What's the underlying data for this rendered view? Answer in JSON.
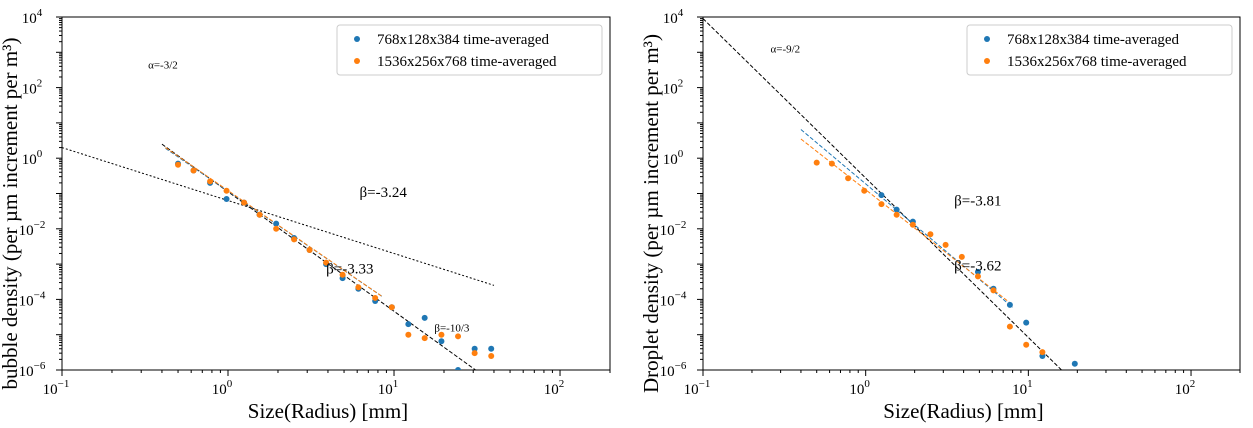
{
  "chart_data": [
    {
      "type": "scatter",
      "xscale": "log",
      "yscale": "log",
      "xlim": [
        0.1,
        200
      ],
      "ylim": [
        1e-06,
        10000.0
      ],
      "xlabel": "Size(Radius) [mm]",
      "ylabel": "bubble density (per µm increment per m³)",
      "xticks": [
        {
          "base": "10",
          "exp": "−1"
        },
        {
          "base": "10",
          "exp": "0"
        },
        {
          "base": "10",
          "exp": "1"
        },
        {
          "base": "10",
          "exp": "2"
        }
      ],
      "yticks": [
        {
          "base": "10",
          "exp": "−6"
        },
        {
          "base": "10",
          "exp": "−4"
        },
        {
          "base": "10",
          "exp": "−2"
        },
        {
          "base": "10",
          "exp": "0"
        },
        {
          "base": "10",
          "exp": "2"
        },
        {
          "base": "10",
          "exp": "4"
        }
      ],
      "legend_position": "top-right",
      "series": [
        {
          "name": "768x128x384  time-averaged",
          "color": "#1f77b4",
          "x": [
            0.5,
            0.62,
            0.78,
            0.98,
            1.25,
            1.55,
            1.95,
            2.5,
            3.1,
            3.9,
            4.9,
            6.1,
            7.7,
            9.7,
            12.2,
            15.3,
            19.3,
            24.3,
            30.6,
            38.5
          ],
          "y": [
            0.7,
            0.45,
            0.2,
            0.07,
            0.055,
            0.025,
            0.014,
            0.0055,
            0.0025,
            0.001,
            0.0004,
            0.0002,
            9e-05,
            6e-05,
            2e-05,
            3e-05,
            6.5e-06,
            1e-06,
            4e-06,
            4e-06
          ]
        },
        {
          "name": "1536x256x768  time-averaged",
          "color": "#ff7f0e",
          "x": [
            0.5,
            0.62,
            0.78,
            0.98,
            1.25,
            1.55,
            1.95,
            2.5,
            3.1,
            3.9,
            4.9,
            6.1,
            7.7,
            9.7,
            12.2,
            15.3,
            19.3,
            24.3,
            30.6,
            38.5
          ],
          "y": [
            0.65,
            0.45,
            0.22,
            0.12,
            0.055,
            0.025,
            0.01,
            0.005,
            0.0025,
            0.0011,
            0.0005,
            0.00022,
            0.00011,
            6e-05,
            1e-05,
            8e-06,
            1e-05,
            9e-06,
            3e-06,
            2.5e-06
          ]
        }
      ],
      "fit_lines": [
        {
          "style": "dotted",
          "color": "#000000",
          "x": [
            0.1,
            40
          ],
          "y": [
            2.0,
            0.00025
          ]
        },
        {
          "style": "dashed",
          "color": "#000000",
          "x": [
            0.4,
            31
          ],
          "y": [
            2.5,
            1e-06
          ]
        },
        {
          "style": "dashed",
          "color": "#1f77b4",
          "x": [
            0.42,
            8.5
          ],
          "y": [
            1.9,
            0.00012
          ]
        },
        {
          "style": "dashed",
          "color": "#ff7f0e",
          "x": [
            0.42,
            8.5
          ],
          "y": [
            2.0,
            0.00012
          ]
        }
      ],
      "annotations": [
        {
          "text": "α=-3/2",
          "x": 0.33,
          "y": 350,
          "color": "#000000",
          "size": "small"
        },
        {
          "text": "β=-3.24",
          "x": 6.2,
          "y": 0.08,
          "color": "#1f77b4",
          "size": "big"
        },
        {
          "text": "β=-3.33",
          "x": 3.9,
          "y": 0.00055,
          "color": "#ff7f0e",
          "size": "big"
        },
        {
          "text": "β=-10/3",
          "x": 17.5,
          "y": 1.25e-05,
          "color": "#000000",
          "size": "small"
        }
      ]
    },
    {
      "type": "scatter",
      "xscale": "log",
      "yscale": "log",
      "xlim": [
        0.1,
        200
      ],
      "ylim": [
        1e-06,
        10000.0
      ],
      "xlabel": "Size(Radius) [mm]",
      "ylabel": "Droplet density (per µm increment per m³)",
      "xticks": [
        {
          "base": "10",
          "exp": "−1"
        },
        {
          "base": "10",
          "exp": "0"
        },
        {
          "base": "10",
          "exp": "1"
        },
        {
          "base": "10",
          "exp": "2"
        }
      ],
      "yticks": [
        {
          "base": "10",
          "exp": "−6"
        },
        {
          "base": "10",
          "exp": "−4"
        },
        {
          "base": "10",
          "exp": "−2"
        },
        {
          "base": "10",
          "exp": "0"
        },
        {
          "base": "10",
          "exp": "2"
        },
        {
          "base": "10",
          "exp": "4"
        }
      ],
      "legend_position": "top-right",
      "series": [
        {
          "name": "768x128x384  time-averaged",
          "color": "#1f77b4",
          "x": [
            1.25,
            1.55,
            1.95,
            4.9,
            6.1,
            7.7,
            9.7,
            12.2,
            19.3
          ],
          "y": [
            0.09,
            0.035,
            0.016,
            0.0006,
            0.0002,
            7e-05,
            2.2e-05,
            2.5e-06,
            1.5e-06
          ]
        },
        {
          "name": "1536x256x768  time-averaged",
          "color": "#ff7f0e",
          "x": [
            0.5,
            0.62,
            0.78,
            0.98,
            1.25,
            1.55,
            1.95,
            2.5,
            3.1,
            3.9,
            4.9,
            6.1,
            7.7,
            9.7,
            12.2
          ],
          "y": [
            0.75,
            0.7,
            0.27,
            0.12,
            0.05,
            0.025,
            0.013,
            0.007,
            0.0035,
            0.0016,
            0.00045,
            0.00018,
            1.7e-05,
            5.2e-06,
            3.2e-06
          ]
        }
      ],
      "fit_lines": [
        {
          "style": "dashed",
          "color": "#000000",
          "x": [
            0.1,
            16
          ],
          "y": [
            9000,
            1e-06
          ]
        },
        {
          "style": "dashed",
          "color": "#1f77b4",
          "x": [
            0.4,
            8
          ],
          "y": [
            6.5,
            6e-05
          ]
        },
        {
          "style": "dashed",
          "color": "#ff7f0e",
          "x": [
            0.4,
            8
          ],
          "y": [
            3.5,
            7e-05
          ]
        }
      ],
      "annotations": [
        {
          "text": "α=-9/2",
          "x": 0.26,
          "y": 1000,
          "color": "#000000",
          "size": "small"
        },
        {
          "text": "β=-3.81",
          "x": 3.5,
          "y": 0.045,
          "color": "#1f77b4",
          "size": "big"
        },
        {
          "text": "β=-3.62",
          "x": 3.5,
          "y": 0.00065,
          "color": "#ff7f0e",
          "size": "big"
        }
      ]
    }
  ]
}
